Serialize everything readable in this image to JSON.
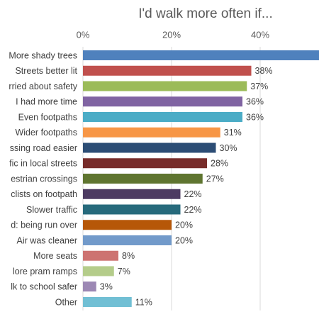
{
  "chart_data": {
    "type": "barh",
    "title": "I'd walk more often if...",
    "categories": [
      "More shady trees",
      "Streets better lit",
      "rried about safety",
      "I had more time",
      "Even footpaths",
      "Wider footpaths",
      "ssing road easier",
      "fic in local streets",
      "estrian crossings",
      "clists on footpath",
      "Slower traffic",
      "d: being run over",
      "Air was cleaner",
      "More seats",
      "lore pram ramps",
      "lk to school safer",
      "Other"
    ],
    "values": [
      55,
      38,
      37,
      36,
      36,
      31,
      30,
      28,
      27,
      22,
      22,
      20,
      20,
      8,
      7,
      3,
      11
    ],
    "value_labels": [
      null,
      "38%",
      "37%",
      "36%",
      "36%",
      "31%",
      "30%",
      "28%",
      "27%",
      "22%",
      "22%",
      "20%",
      "20%",
      "8%",
      "7%",
      "3%",
      "11%"
    ],
    "colors": [
      "#4f81bd",
      "#c0504d",
      "#9bbb59",
      "#8064a2",
      "#4bacc6",
      "#f79646",
      "#2c4d75",
      "#772c2a",
      "#5f7530",
      "#4d3b62",
      "#276a7c",
      "#b65708",
      "#729aca",
      "#cd7371",
      "#b4cc8a",
      "#9c88b4",
      "#71bfd4"
    ],
    "xlim": [
      0,
      53.3
    ],
    "xticks": [
      {
        "value": 0,
        "label": "0%"
      },
      {
        "value": 20,
        "label": "20%"
      },
      {
        "value": 40,
        "label": "40%"
      }
    ],
    "grid": true
  }
}
